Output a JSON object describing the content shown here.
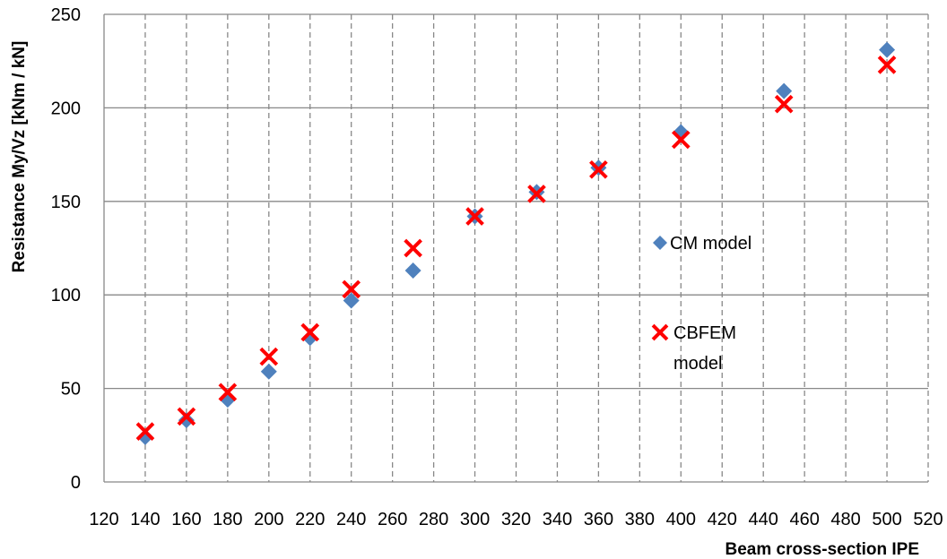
{
  "chart_data": {
    "type": "scatter",
    "title": "",
    "xlabel": "Beam cross-section IPE",
    "ylabel": "Resistance My/Vz [kNm / kN]",
    "xlim": [
      120,
      520
    ],
    "ylim": [
      0,
      250
    ],
    "xticks": [
      120,
      140,
      160,
      180,
      200,
      220,
      240,
      260,
      280,
      300,
      320,
      340,
      360,
      380,
      400,
      420,
      440,
      460,
      480,
      500,
      520
    ],
    "yticks": [
      0,
      50,
      100,
      150,
      200,
      250
    ],
    "grid": {
      "vertical": "dashed",
      "horizontal": "solid"
    },
    "legend_position": "right",
    "series": [
      {
        "name": "CM model",
        "marker": "diamond",
        "color": "#4F81BD",
        "x": [
          140,
          160,
          180,
          200,
          220,
          240,
          270,
          300,
          330,
          360,
          400,
          450,
          500
        ],
        "y": [
          24,
          33,
          44,
          59,
          77,
          97,
          113,
          142,
          155,
          168,
          187,
          209,
          231
        ]
      },
      {
        "name": "CBFEM model",
        "name_lines": [
          "CBFEM",
          "model"
        ],
        "marker": "x",
        "color": "#FF0000",
        "x": [
          140,
          160,
          180,
          200,
          220,
          240,
          270,
          300,
          330,
          360,
          400,
          450,
          500
        ],
        "y": [
          27,
          35,
          48,
          67,
          80,
          103,
          125,
          142,
          154,
          167,
          183,
          202,
          223
        ]
      }
    ]
  }
}
